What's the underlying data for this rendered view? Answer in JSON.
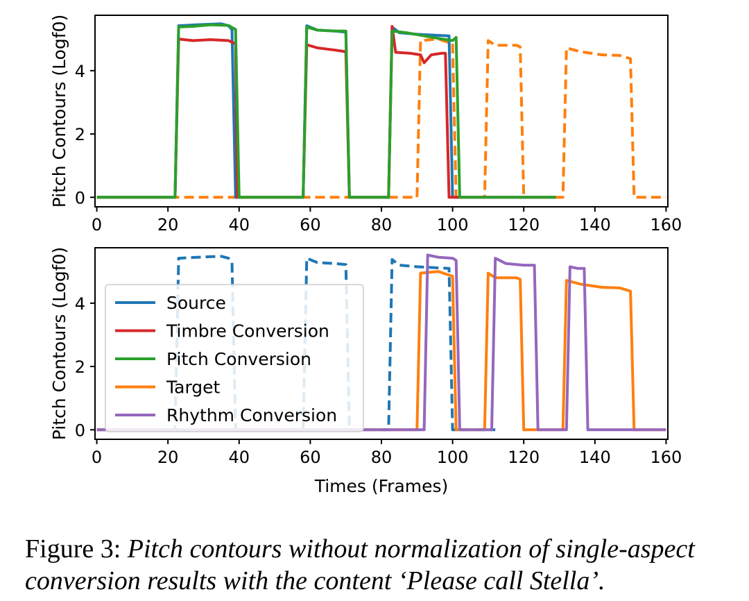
{
  "caption": {
    "label": "Figure 3:",
    "text": "Pitch contours without normalization of single-aspect conversion results with the content ‘Please call Stella’."
  },
  "colors": {
    "source": "#1f77b4",
    "timbre": "#d62728",
    "pitch": "#2ca02c",
    "target": "#ff7f0e",
    "rhythm": "#9467bd"
  },
  "chart_data": [
    {
      "type": "line",
      "title": "",
      "xlabel": "",
      "ylabel": "Pitch Contours (Logf0)",
      "xlim": [
        -0.5,
        160.5
      ],
      "ylim": [
        -0.3,
        5.75
      ],
      "xticks": [
        0,
        20,
        40,
        60,
        80,
        100,
        120,
        140,
        160
      ],
      "yticks": [
        0,
        2,
        4
      ],
      "grid": false,
      "legend": null,
      "series": [
        {
          "key": "target",
          "color": "#ff7f0e",
          "dashed": true,
          "alpha": 1,
          "points": [
            [
              0,
              0
            ],
            [
              90,
              0
            ],
            [
              91,
              4.95
            ],
            [
              96,
              5.0
            ],
            [
              100,
              4.85
            ],
            [
              101,
              0
            ],
            [
              109,
              0
            ],
            [
              110,
              4.95
            ],
            [
              112,
              4.8
            ],
            [
              118,
              4.8
            ],
            [
              119,
              4.75
            ],
            [
              120,
              0
            ],
            [
              131,
              0
            ],
            [
              132,
              4.72
            ],
            [
              136,
              4.6
            ],
            [
              142,
              4.5
            ],
            [
              147,
              4.48
            ],
            [
              150,
              4.38
            ],
            [
              151,
              0
            ],
            [
              160,
              0
            ]
          ]
        },
        {
          "key": "source",
          "color": "#1f77b4",
          "dashed": false,
          "alpha": 1,
          "points": [
            [
              0,
              0
            ],
            [
              22,
              0
            ],
            [
              23,
              5.42
            ],
            [
              28,
              5.45
            ],
            [
              35,
              5.48
            ],
            [
              37,
              5.42
            ],
            [
              38,
              5.3
            ],
            [
              39,
              0
            ],
            [
              58,
              0
            ],
            [
              59,
              5.42
            ],
            [
              62,
              5.28
            ],
            [
              67,
              5.25
            ],
            [
              70,
              5.22
            ],
            [
              71,
              0
            ],
            [
              82,
              0
            ],
            [
              83,
              5.38
            ],
            [
              85,
              5.2
            ],
            [
              90,
              5.15
            ],
            [
              95,
              5.12
            ],
            [
              99,
              5.1
            ],
            [
              100,
              0
            ],
            [
              129,
              0
            ]
          ]
        },
        {
          "key": "timbre",
          "color": "#d62728",
          "dashed": false,
          "alpha": 1,
          "points": [
            [
              0,
              0
            ],
            [
              22,
              0
            ],
            [
              23,
              5.0
            ],
            [
              27,
              4.95
            ],
            [
              32,
              4.98
            ],
            [
              37,
              4.95
            ],
            [
              39,
              4.85
            ],
            [
              39.5,
              0
            ],
            [
              58,
              0
            ],
            [
              59,
              4.82
            ],
            [
              62,
              4.72
            ],
            [
              67,
              4.65
            ],
            [
              70,
              4.6
            ],
            [
              71,
              0
            ],
            [
              82,
              0
            ],
            [
              83,
              5.4
            ],
            [
              84,
              4.58
            ],
            [
              88,
              4.55
            ],
            [
              91,
              4.5
            ],
            [
              92,
              4.25
            ],
            [
              94,
              4.5
            ],
            [
              97,
              4.55
            ],
            [
              98,
              4.55
            ],
            [
              99,
              0
            ],
            [
              129,
              0
            ]
          ]
        },
        {
          "key": "pitch",
          "color": "#2ca02c",
          "dashed": false,
          "alpha": 1,
          "points": [
            [
              0,
              0
            ],
            [
              22,
              0
            ],
            [
              23,
              5.38
            ],
            [
              27,
              5.4
            ],
            [
              32,
              5.45
            ],
            [
              37,
              5.43
            ],
            [
              39,
              5.3
            ],
            [
              40,
              0
            ],
            [
              58,
              0
            ],
            [
              59,
              5.38
            ],
            [
              62,
              5.28
            ],
            [
              67,
              5.25
            ],
            [
              70,
              5.25
            ],
            [
              71,
              0
            ],
            [
              82,
              0
            ],
            [
              83,
              5.25
            ],
            [
              87,
              5.2
            ],
            [
              92,
              5.1
            ],
            [
              97,
              5.0
            ],
            [
              100,
              4.95
            ],
            [
              101,
              5.05
            ],
            [
              102,
              0
            ],
            [
              129,
              0
            ]
          ]
        }
      ]
    },
    {
      "type": "line",
      "title": "",
      "xlabel": "Times (Frames)",
      "ylabel": "Pitch Contours (Logf0)",
      "xlim": [
        -0.5,
        160.5
      ],
      "ylim": [
        -0.3,
        5.75
      ],
      "xticks": [
        0,
        20,
        40,
        60,
        80,
        100,
        120,
        140,
        160
      ],
      "yticks": [
        0,
        2,
        4
      ],
      "grid": false,
      "legend": {
        "position": "center-left",
        "entries": [
          {
            "label": "Source",
            "color": "#1f77b4"
          },
          {
            "label": "Timbre Conversion",
            "color": "#d62728"
          },
          {
            "label": "Pitch Conversion",
            "color": "#2ca02c"
          },
          {
            "label": "Target",
            "color": "#ff7f0e"
          },
          {
            "label": "Rhythm Conversion",
            "color": "#9467bd"
          }
        ]
      },
      "series": [
        {
          "key": "source",
          "color": "#1f77b4",
          "dashed": true,
          "alpha": 1,
          "points": [
            [
              0,
              0
            ],
            [
              22,
              0
            ],
            [
              23,
              5.42
            ],
            [
              28,
              5.45
            ],
            [
              35,
              5.48
            ],
            [
              37,
              5.42
            ],
            [
              38,
              5.3
            ],
            [
              39,
              0
            ],
            [
              58,
              0
            ],
            [
              59,
              5.42
            ],
            [
              62,
              5.28
            ],
            [
              67,
              5.25
            ],
            [
              70,
              5.22
            ],
            [
              71,
              0
            ],
            [
              82,
              0
            ],
            [
              83,
              5.38
            ],
            [
              85,
              5.2
            ],
            [
              90,
              5.15
            ],
            [
              95,
              5.12
            ],
            [
              99,
              5.1
            ],
            [
              100,
              0
            ],
            [
              112,
              0
            ]
          ]
        },
        {
          "key": "target",
          "color": "#ff7f0e",
          "dashed": false,
          "alpha": 1,
          "points": [
            [
              0,
              0
            ],
            [
              90,
              0
            ],
            [
              91,
              4.95
            ],
            [
              96,
              5.0
            ],
            [
              100,
              4.85
            ],
            [
              101,
              0
            ],
            [
              109,
              0
            ],
            [
              110,
              4.95
            ],
            [
              112,
              4.8
            ],
            [
              118,
              4.8
            ],
            [
              119,
              4.75
            ],
            [
              120,
              0
            ],
            [
              131,
              0
            ],
            [
              132,
              4.72
            ],
            [
              136,
              4.6
            ],
            [
              142,
              4.5
            ],
            [
              147,
              4.48
            ],
            [
              150,
              4.38
            ],
            [
              151,
              0
            ],
            [
              160,
              0
            ]
          ]
        },
        {
          "key": "rhythm",
          "color": "#9467bd",
          "dashed": false,
          "alpha": 1,
          "points": [
            [
              0,
              0
            ],
            [
              92,
              0
            ],
            [
              93,
              5.52
            ],
            [
              96,
              5.45
            ],
            [
              100,
              5.42
            ],
            [
              101,
              5.35
            ],
            [
              102,
              0
            ],
            [
              111,
              0
            ],
            [
              112,
              5.42
            ],
            [
              115,
              5.25
            ],
            [
              120,
              5.2
            ],
            [
              123,
              5.2
            ],
            [
              124,
              0
            ],
            [
              132,
              0
            ],
            [
              133,
              5.15
            ],
            [
              135,
              5.1
            ],
            [
              137,
              5.1
            ],
            [
              138,
              0
            ],
            [
              160,
              0
            ]
          ]
        }
      ]
    }
  ]
}
